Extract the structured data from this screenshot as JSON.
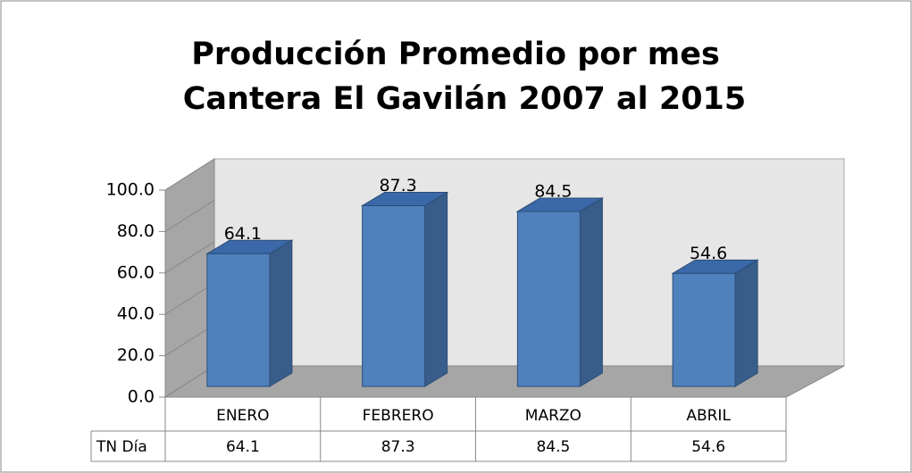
{
  "chart_data": {
    "type": "bar3d",
    "title": [
      "Producción Promedio por mes",
      "Cantera El Gavilán 2007 al 2015"
    ],
    "categories": [
      "ENERO",
      "FEBRERO",
      "MARZO",
      "ABRIL"
    ],
    "series": [
      {
        "name": "TN Día",
        "color": "#4f81bd",
        "values": [
          64.1,
          87.3,
          84.5,
          54.6
        ]
      }
    ],
    "ylim": [
      0,
      100
    ],
    "yticks": [
      {
        "value": 0,
        "label": "0.0"
      },
      {
        "value": 20,
        "label": "20.0"
      },
      {
        "value": 40,
        "label": "40.0"
      },
      {
        "value": 60,
        "label": "60.0"
      },
      {
        "value": 80,
        "label": "80.0"
      },
      {
        "value": 100,
        "label": "100.0"
      }
    ],
    "data_table": true
  }
}
